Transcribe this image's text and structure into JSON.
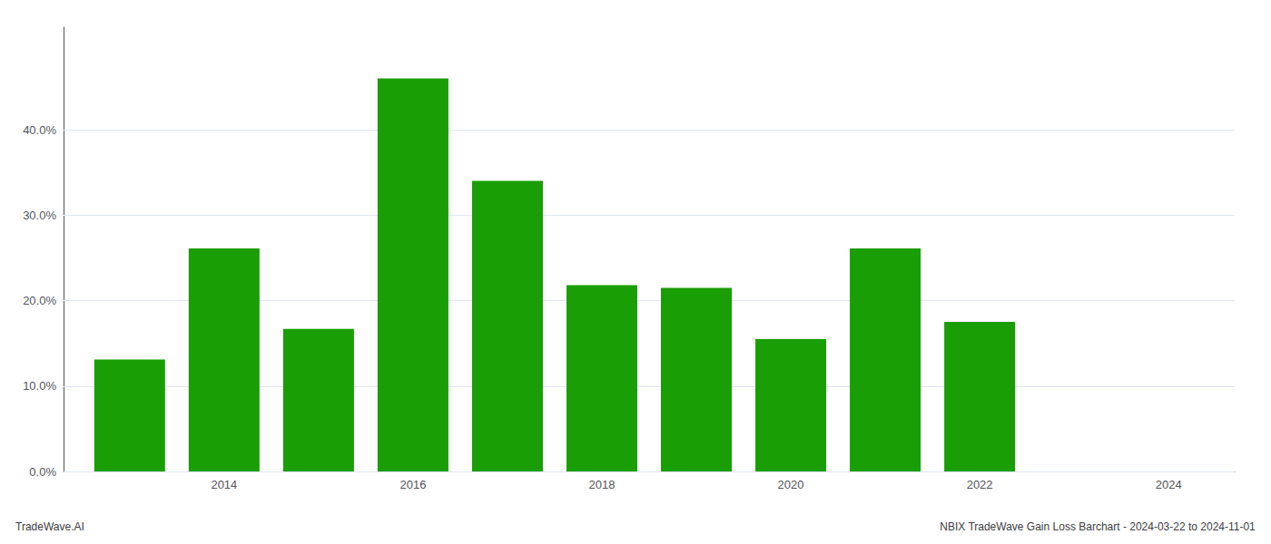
{
  "chart_data": {
    "type": "bar",
    "x": [
      2013,
      2014,
      2015,
      2016,
      2017,
      2018,
      2019,
      2020,
      2021,
      2022
    ],
    "values": [
      0.131,
      0.261,
      0.167,
      0.46,
      0.34,
      0.218,
      0.215,
      0.155,
      0.261,
      0.175
    ],
    "color": "#1a9e06",
    "xlim": [
      2012.3,
      2024.7
    ],
    "xticks": [
      2014,
      2016,
      2018,
      2020,
      2022,
      2024
    ],
    "ylim": [
      0.0,
      0.52
    ],
    "yticks": [
      {
        "value": 0.0,
        "label": "0.0%"
      },
      {
        "value": 0.1,
        "label": "10.0%"
      },
      {
        "value": 0.2,
        "label": "20.0%"
      },
      {
        "value": 0.3,
        "label": "30.0%"
      },
      {
        "value": 0.4,
        "label": "40.0%"
      }
    ],
    "grid": true,
    "annotations": [
      "TradeWave.AI",
      "NBIX TradeWave Gain Loss Barchart - 2024-03-22 to 2024-11-01"
    ]
  }
}
